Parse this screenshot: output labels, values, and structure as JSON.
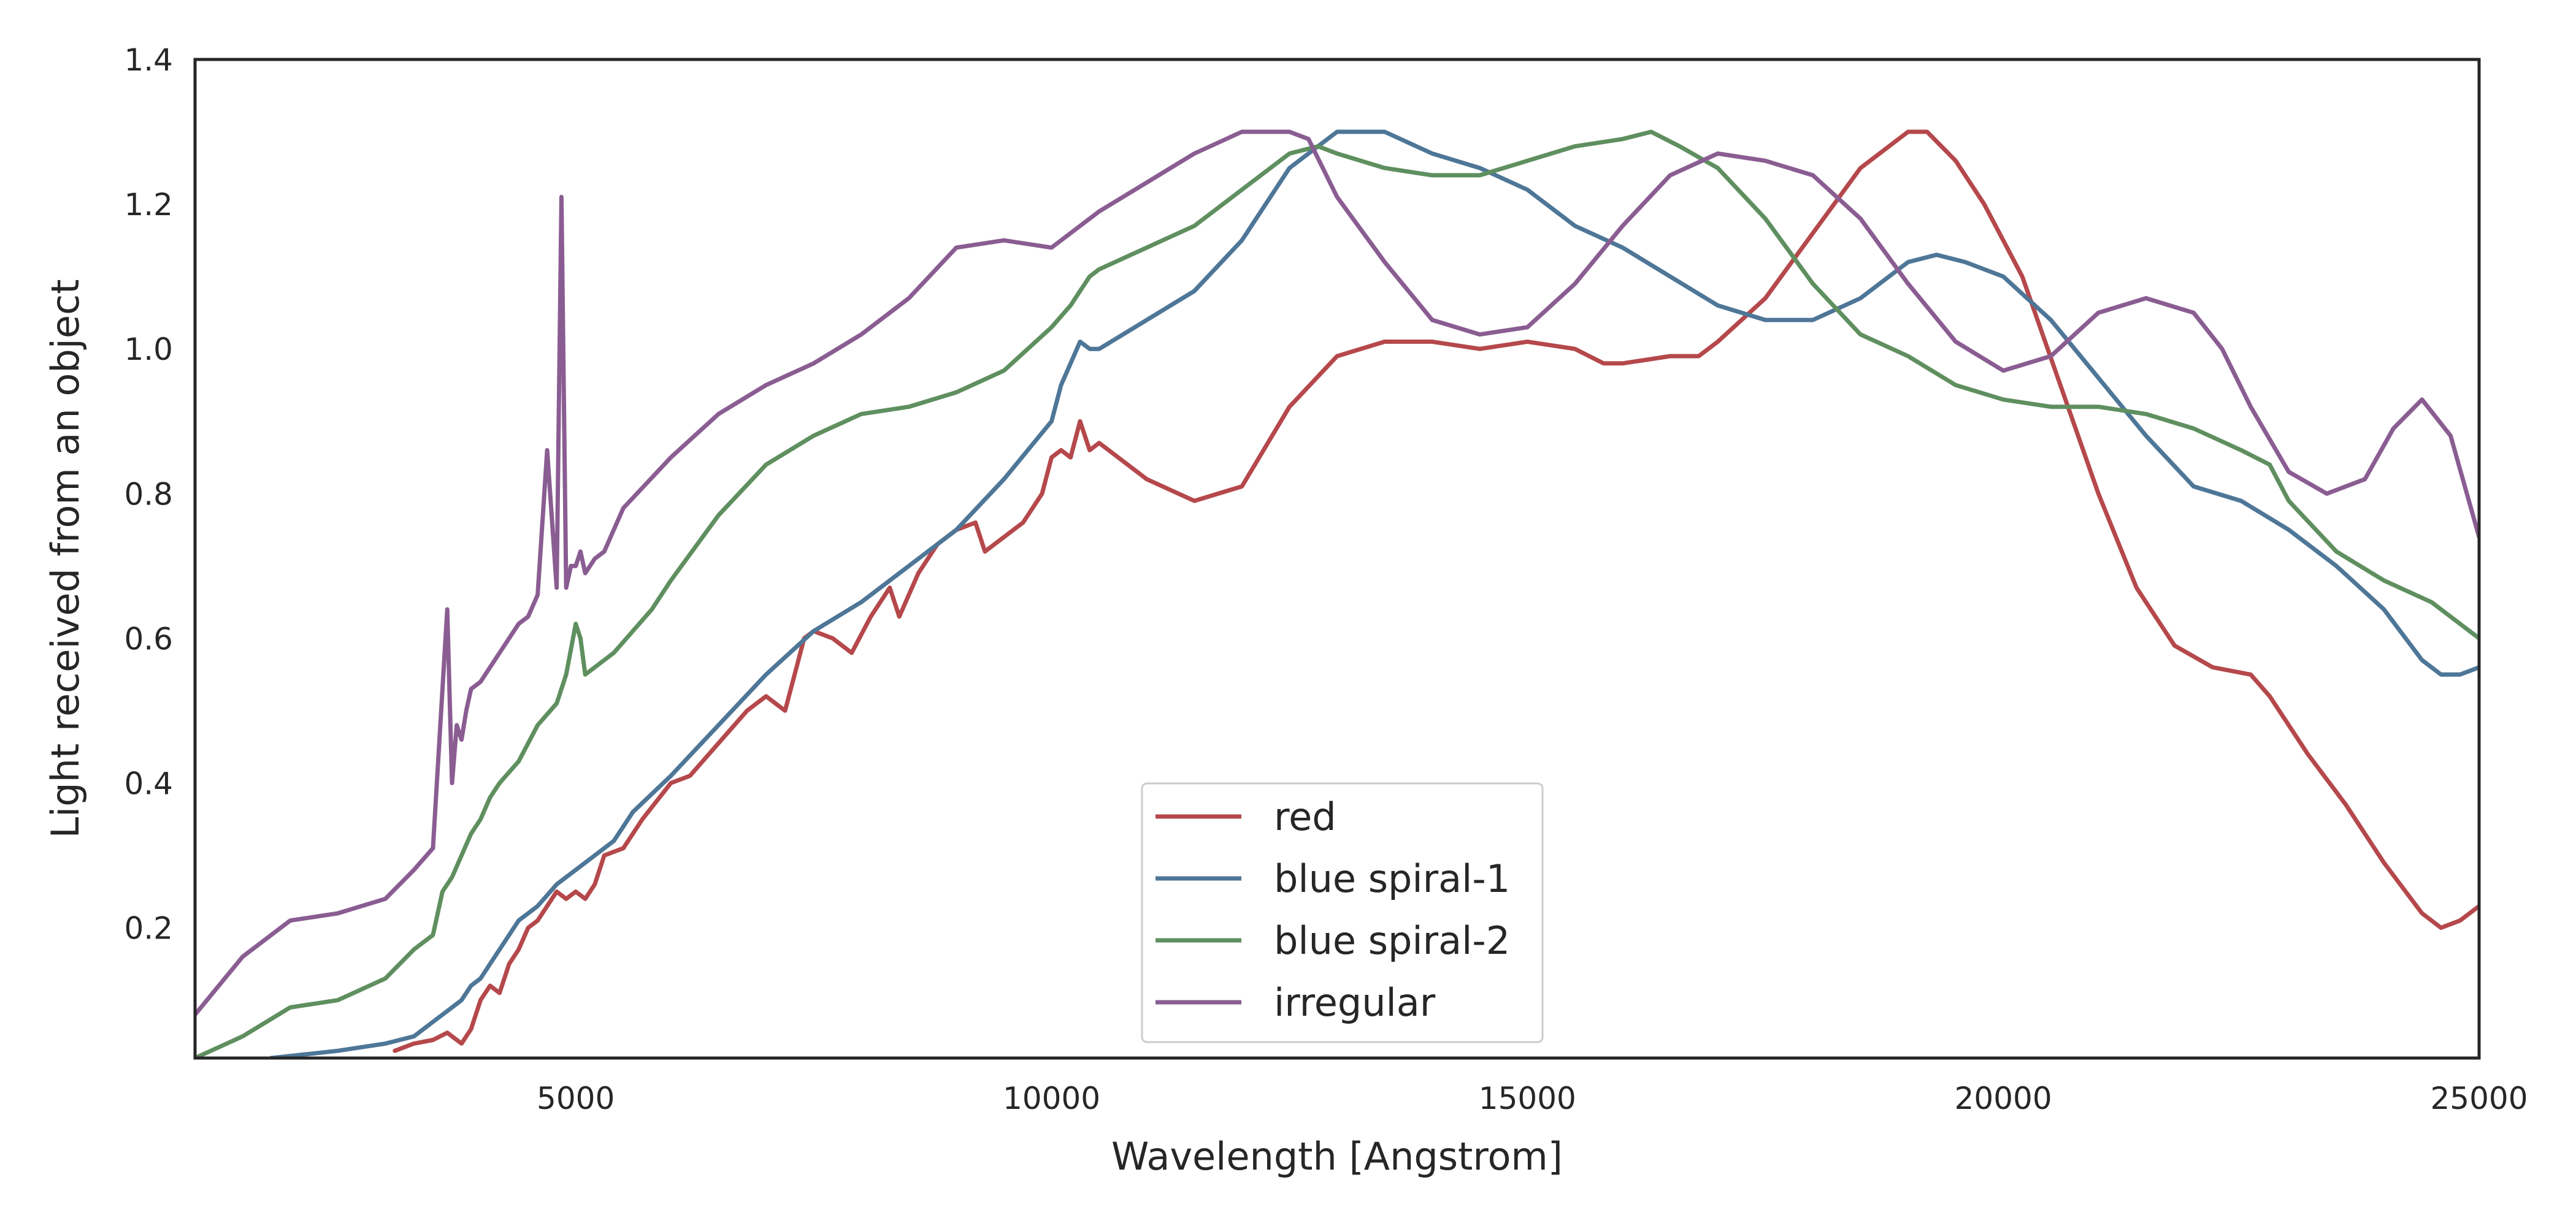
{
  "chart_data": {
    "type": "line",
    "title": "",
    "xlabel": "Wavelength [Angstrom]",
    "ylabel": "Light received from an object",
    "xlim": [
      1000,
      25000
    ],
    "ylim": [
      0.02,
      1.4
    ],
    "xticks": [
      {
        "value": 5000,
        "label": "5000"
      },
      {
        "value": 10000,
        "label": "10000"
      },
      {
        "value": 15000,
        "label": "15000"
      },
      {
        "value": 20000,
        "label": "20000"
      },
      {
        "value": 25000,
        "label": "25000"
      }
    ],
    "yticks": [
      {
        "value": 0.2,
        "label": "0.2"
      },
      {
        "value": 0.4,
        "label": "0.4"
      },
      {
        "value": 0.6,
        "label": "0.6"
      },
      {
        "value": 0.8,
        "label": "0.8"
      },
      {
        "value": 1.0,
        "label": "1.0"
      },
      {
        "value": 1.2,
        "label": "1.2"
      },
      {
        "value": 1.4,
        "label": "1.4"
      }
    ],
    "grid": false,
    "legend_position": "bottom-center",
    "series": [
      {
        "name": "red",
        "color": "#b5484b",
        "x": [
          3100,
          3300,
          3500,
          3650,
          3800,
          3900,
          4000,
          4100,
          4200,
          4300,
          4400,
          4500,
          4600,
          4700,
          4800,
          4900,
          5000,
          5100,
          5200,
          5300,
          5500,
          5700,
          6000,
          6200,
          6400,
          6600,
          6800,
          7000,
          7200,
          7300,
          7400,
          7500,
          7700,
          7900,
          8100,
          8300,
          8400,
          8600,
          8800,
          9000,
          9200,
          9300,
          9500,
          9700,
          9900,
          10000,
          10100,
          10200,
          10300,
          10400,
          10500,
          10600,
          11000,
          11500,
          12000,
          12500,
          13000,
          13500,
          14000,
          14500,
          15000,
          15500,
          15800,
          16000,
          16500,
          16800,
          17000,
          17500,
          18000,
          18500,
          19000,
          19200,
          19500,
          19800,
          20200,
          20600,
          21000,
          21400,
          21800,
          22200,
          22600,
          22800,
          23200,
          23600,
          24000,
          24400,
          24600,
          24800,
          25000
        ],
        "y": [
          0.03,
          0.04,
          0.045,
          0.055,
          0.04,
          0.06,
          0.1,
          0.12,
          0.11,
          0.15,
          0.17,
          0.2,
          0.21,
          0.23,
          0.25,
          0.24,
          0.25,
          0.24,
          0.26,
          0.3,
          0.31,
          0.35,
          0.4,
          0.41,
          0.44,
          0.47,
          0.5,
          0.52,
          0.5,
          0.55,
          0.6,
          0.61,
          0.6,
          0.58,
          0.63,
          0.67,
          0.63,
          0.69,
          0.73,
          0.75,
          0.76,
          0.72,
          0.74,
          0.76,
          0.8,
          0.85,
          0.86,
          0.85,
          0.9,
          0.86,
          0.87,
          0.86,
          0.82,
          0.79,
          0.81,
          0.92,
          0.99,
          1.01,
          1.01,
          1.0,
          1.01,
          1.0,
          0.98,
          0.98,
          0.99,
          0.99,
          1.01,
          1.07,
          1.16,
          1.25,
          1.3,
          1.3,
          1.26,
          1.2,
          1.1,
          0.95,
          0.8,
          0.67,
          0.59,
          0.56,
          0.55,
          0.52,
          0.44,
          0.37,
          0.29,
          0.22,
          0.2,
          0.21,
          0.23
        ]
      },
      {
        "name": "blue spiral-1",
        "color": "#4e7697",
        "x": [
          1800,
          2500,
          3000,
          3300,
          3500,
          3700,
          3800,
          3900,
          4000,
          4100,
          4200,
          4300,
          4400,
          4600,
          4800,
          5000,
          5200,
          5400,
          5500,
          5600,
          6000,
          6500,
          7000,
          7500,
          8000,
          8500,
          9000,
          9500,
          10000,
          10100,
          10200,
          10300,
          10400,
          10500,
          11000,
          11500,
          12000,
          12500,
          13000,
          13200,
          13500,
          14000,
          14500,
          15000,
          15500,
          16000,
          16500,
          17000,
          17500,
          18000,
          18500,
          19000,
          19300,
          19600,
          20000,
          20500,
          21000,
          21500,
          22000,
          22500,
          23000,
          23500,
          24000,
          24400,
          24600,
          24800,
          25000
        ],
        "y": [
          0.02,
          0.03,
          0.04,
          0.05,
          0.07,
          0.09,
          0.1,
          0.12,
          0.13,
          0.15,
          0.17,
          0.19,
          0.21,
          0.23,
          0.26,
          0.28,
          0.3,
          0.32,
          0.34,
          0.36,
          0.41,
          0.48,
          0.55,
          0.61,
          0.65,
          0.7,
          0.75,
          0.82,
          0.9,
          0.95,
          0.98,
          1.01,
          1.0,
          1.0,
          1.04,
          1.08,
          1.15,
          1.25,
          1.3,
          1.3,
          1.3,
          1.27,
          1.25,
          1.22,
          1.17,
          1.14,
          1.1,
          1.06,
          1.04,
          1.04,
          1.07,
          1.12,
          1.13,
          1.12,
          1.1,
          1.04,
          0.96,
          0.88,
          0.81,
          0.79,
          0.75,
          0.7,
          0.64,
          0.57,
          0.55,
          0.55,
          0.56
        ]
      },
      {
        "name": "blue spiral-2",
        "color": "#5f8f5f",
        "x": [
          1000,
          1500,
          2000,
          2500,
          3000,
          3300,
          3500,
          3600,
          3700,
          3800,
          3900,
          4000,
          4100,
          4200,
          4400,
          4600,
          4800,
          4900,
          5000,
          5050,
          5100,
          5200,
          5400,
          5600,
          5800,
          6000,
          6500,
          7000,
          7500,
          8000,
          8500,
          9000,
          9500,
          10000,
          10200,
          10300,
          10400,
          10500,
          11000,
          11500,
          12000,
          12500,
          12800,
          13000,
          13500,
          14000,
          14500,
          15000,
          15500,
          16000,
          16300,
          16600,
          17000,
          17500,
          18000,
          18500,
          19000,
          19500,
          20000,
          20500,
          21000,
          21500,
          22000,
          22500,
          22800,
          23000,
          23500,
          24000,
          24500,
          25000
        ],
        "y": [
          0.02,
          0.05,
          0.09,
          0.1,
          0.13,
          0.17,
          0.19,
          0.25,
          0.27,
          0.3,
          0.33,
          0.35,
          0.38,
          0.4,
          0.43,
          0.48,
          0.51,
          0.55,
          0.62,
          0.6,
          0.55,
          0.56,
          0.58,
          0.61,
          0.64,
          0.68,
          0.77,
          0.84,
          0.88,
          0.91,
          0.92,
          0.94,
          0.97,
          1.03,
          1.06,
          1.08,
          1.1,
          1.11,
          1.14,
          1.17,
          1.22,
          1.27,
          1.28,
          1.27,
          1.25,
          1.24,
          1.24,
          1.26,
          1.28,
          1.29,
          1.3,
          1.28,
          1.25,
          1.18,
          1.09,
          1.02,
          0.99,
          0.95,
          0.93,
          0.92,
          0.92,
          0.91,
          0.89,
          0.86,
          0.84,
          0.79,
          0.72,
          0.68,
          0.65,
          0.6
        ]
      },
      {
        "name": "irregular",
        "color": "#8a5d92",
        "x": [
          1000,
          1500,
          2000,
          2500,
          3000,
          3300,
          3500,
          3650,
          3700,
          3750,
          3800,
          3850,
          3900,
          4000,
          4100,
          4200,
          4300,
          4400,
          4500,
          4600,
          4700,
          4800,
          4850,
          4900,
          4950,
          5000,
          5050,
          5100,
          5200,
          5300,
          5400,
          5500,
          6000,
          6500,
          7000,
          7500,
          8000,
          8500,
          9000,
          9500,
          10000,
          10100,
          10200,
          10300,
          10400,
          10500,
          11000,
          11500,
          12000,
          12500,
          12700,
          13000,
          13500,
          14000,
          14500,
          15000,
          15500,
          16000,
          16500,
          17000,
          17500,
          18000,
          18500,
          19000,
          19500,
          20000,
          20500,
          21000,
          21500,
          22000,
          22300,
          22600,
          23000,
          23400,
          23800,
          24100,
          24400,
          24700,
          25000
        ],
        "y": [
          0.08,
          0.16,
          0.21,
          0.22,
          0.24,
          0.28,
          0.31,
          0.64,
          0.4,
          0.48,
          0.46,
          0.5,
          0.53,
          0.54,
          0.56,
          0.58,
          0.6,
          0.62,
          0.63,
          0.66,
          0.86,
          0.67,
          1.21,
          0.67,
          0.7,
          0.7,
          0.72,
          0.69,
          0.71,
          0.72,
          0.75,
          0.78,
          0.85,
          0.91,
          0.95,
          0.98,
          1.02,
          1.07,
          1.14,
          1.15,
          1.14,
          1.15,
          1.16,
          1.17,
          1.18,
          1.19,
          1.23,
          1.27,
          1.3,
          1.3,
          1.29,
          1.21,
          1.12,
          1.04,
          1.02,
          1.03,
          1.09,
          1.17,
          1.24,
          1.27,
          1.26,
          1.24,
          1.18,
          1.09,
          1.01,
          0.97,
          0.99,
          1.05,
          1.07,
          1.05,
          1.0,
          0.92,
          0.83,
          0.8,
          0.82,
          0.89,
          0.93,
          0.88,
          0.74
        ]
      }
    ]
  }
}
